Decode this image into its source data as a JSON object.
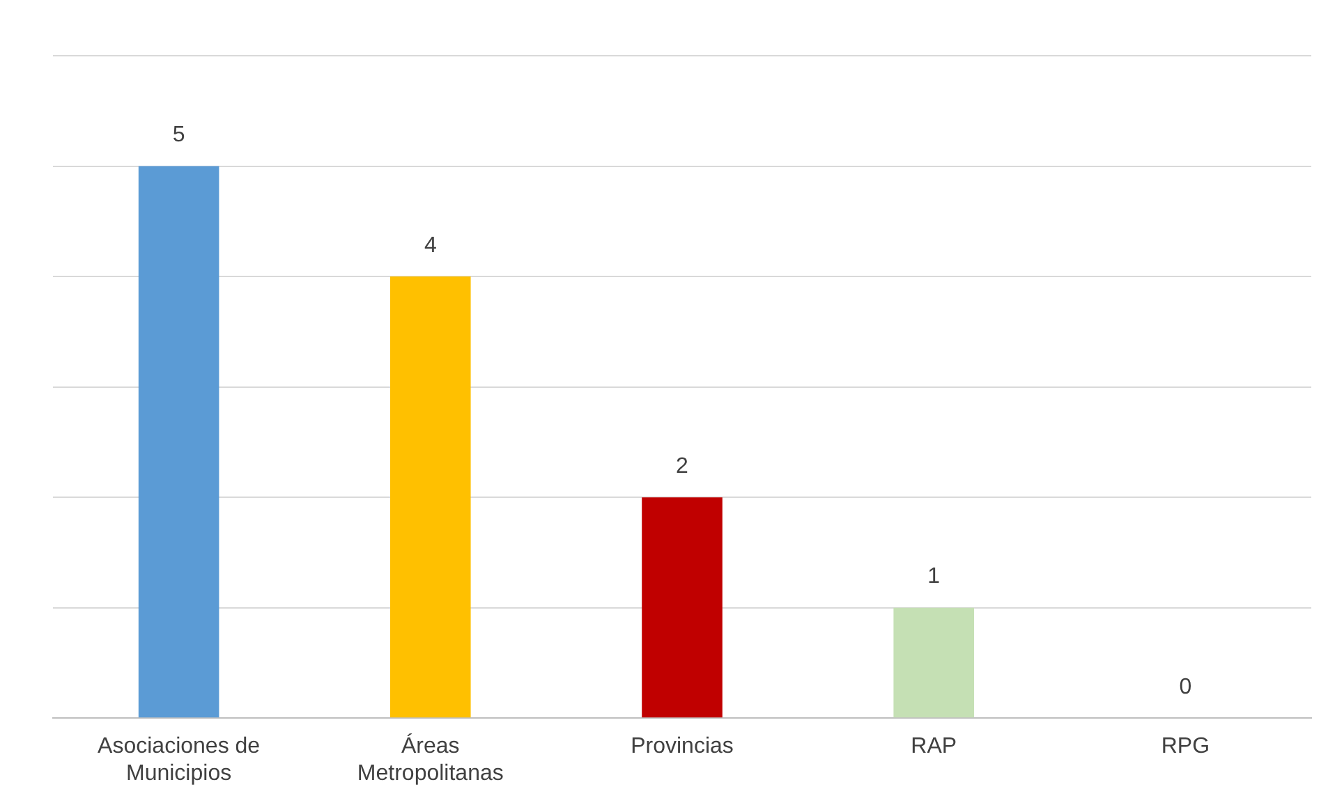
{
  "chart_data": {
    "type": "bar",
    "categories": [
      "Asociaciones de Municipios",
      "Áreas Metropolitanas",
      "Provincias",
      "RAP",
      "RPG"
    ],
    "values": [
      5,
      4,
      2,
      1,
      0
    ],
    "colors": [
      "#5b9bd5",
      "#ffc000",
      "#c00000",
      "#c5e0b4",
      "#a5a5a5"
    ],
    "ylim": [
      0,
      6
    ],
    "yticks": [
      {
        "value": 0,
        "label": null
      },
      {
        "value": 1,
        "label": null
      },
      {
        "value": 2,
        "label": null
      },
      {
        "value": 3,
        "label": null
      },
      {
        "value": 4,
        "label": null
      },
      {
        "value": 5,
        "label": null
      },
      {
        "value": 6,
        "label": null
      }
    ],
    "grid": "y",
    "tick_labels": "x",
    "data_labels": true,
    "legend": false
  }
}
